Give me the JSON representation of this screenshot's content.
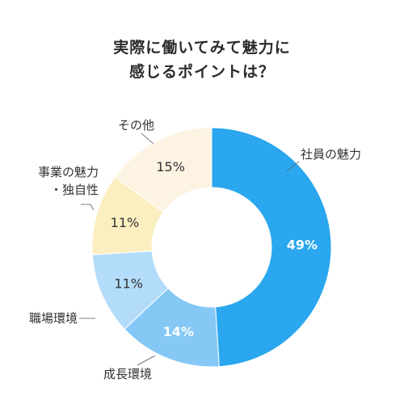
{
  "chart_data": {
    "type": "pie",
    "title_lines": [
      "実際に働いてみて魅力に",
      "感じるポイントは？"
    ],
    "categories": [
      "社員の魅力",
      "成長環境",
      "職場環境",
      "事業の魅力・独自性",
      "その他"
    ],
    "category_lines": [
      [
        "社員の魅力"
      ],
      [
        "成長環境"
      ],
      [
        "職場環境"
      ],
      [
        "事業の魅力",
        "・独自性"
      ],
      [
        "その他"
      ]
    ],
    "values": [
      49,
      14,
      11,
      11,
      15
    ],
    "value_labels": [
      "49%",
      "14%",
      "11%",
      "11%",
      "15%"
    ],
    "colors": [
      "#2aa7ee",
      "#86c8f5",
      "#b3dcfa",
      "#fbefc0",
      "#fdf3e2"
    ],
    "label_colors": [
      "#ffffff",
      "#ffffff",
      "#333333",
      "#333333",
      "#333333"
    ],
    "legend": "callout-labels"
  }
}
